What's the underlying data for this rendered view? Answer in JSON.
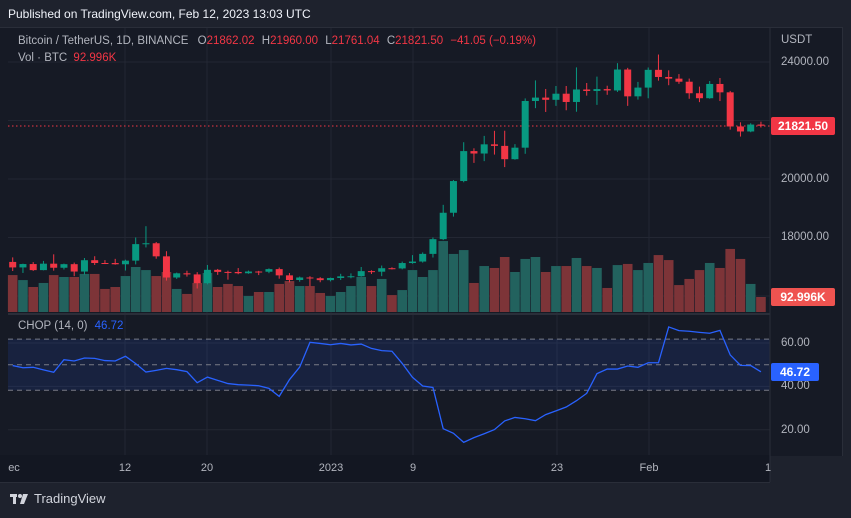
{
  "header": {
    "published": "Published on TradingView.com, Feb 12, 2023 13:03 UTC"
  },
  "legend": {
    "symbol": "Bitcoin / TetherUS, 1D, BINANCE",
    "o_label": "O",
    "o_value": "21862.02",
    "h_label": "H",
    "h_value": "21960.00",
    "l_label": "L",
    "l_value": "21761.04",
    "c_label": "C",
    "c_value": "21821.50",
    "change": "−41.05 (−0.19%)",
    "vol_label": "Vol · BTC",
    "vol_value": "92.996K",
    "chop_label": "CHOP (14, 0)",
    "chop_value": "46.72"
  },
  "footer": {
    "brand": "TradingView"
  },
  "colors": {
    "up": "#089981",
    "down": "#f23645",
    "vol_up": "#22625e",
    "vol_down": "#7d3438",
    "chop": "#2962ff"
  },
  "chart_data": [
    {
      "type": "candlestick",
      "title": "Bitcoin / TetherUS, 1D, BINANCE",
      "currency": "USDT",
      "ylim": [
        15500,
        24800
      ],
      "yticks": [
        "24000.00",
        "20000.00",
        "18000.00"
      ],
      "last_price_label": "21821.50",
      "xticks": [
        "ec",
        "12",
        "20",
        "2023",
        "9",
        "23",
        "Feb",
        "1"
      ],
      "dates": [
        "Dec 1",
        "Dec 2",
        "Dec 3",
        "Dec 4",
        "Dec 5",
        "Dec 6",
        "Dec 7",
        "Dec 8",
        "Dec 9",
        "Dec 10",
        "Dec 11",
        "Dec 12",
        "Dec 13",
        "Dec 14",
        "Dec 15",
        "Dec 16",
        "Dec 17",
        "Dec 18",
        "Dec 19",
        "Dec 20",
        "Dec 21",
        "Dec 22",
        "Dec 23",
        "Dec 24",
        "Dec 25",
        "Dec 26",
        "Dec 27",
        "Dec 28",
        "Dec 29",
        "Dec 30",
        "Dec 31",
        "Jan 1",
        "Jan 2",
        "Jan 3",
        "Jan 4",
        "Jan 5",
        "Jan 6",
        "Jan 7",
        "Jan 8",
        "Jan 9",
        "Jan 10",
        "Jan 11",
        "Jan 12",
        "Jan 13",
        "Jan 14",
        "Jan 15",
        "Jan 16",
        "Jan 17",
        "Jan 18",
        "Jan 19",
        "Jan 20",
        "Jan 21",
        "Jan 22",
        "Jan 23",
        "Jan 24",
        "Jan 25",
        "Jan 26",
        "Jan 27",
        "Jan 28",
        "Jan 29",
        "Jan 30",
        "Jan 31",
        "Feb 1",
        "Feb 2",
        "Feb 3",
        "Feb 4",
        "Feb 5",
        "Feb 6",
        "Feb 7",
        "Feb 8",
        "Feb 9",
        "Feb 10",
        "Feb 11",
        "Feb 12"
      ],
      "ohlc": [
        [
          17165,
          17320,
          16855,
          16977
        ],
        [
          16977,
          17105,
          16788,
          17092
        ],
        [
          17092,
          17158,
          16858,
          16885
        ],
        [
          16885,
          17199,
          16878,
          17105
        ],
        [
          17105,
          17425,
          16867,
          16966
        ],
        [
          16966,
          17107,
          16906,
          17088
        ],
        [
          17088,
          17142,
          16678,
          16836
        ],
        [
          16836,
          17299,
          16733,
          17224
        ],
        [
          17224,
          17360,
          17060,
          17128
        ],
        [
          17128,
          17227,
          17092,
          17127
        ],
        [
          17127,
          17270,
          17071,
          17085
        ],
        [
          17085,
          17241,
          16871,
          17209
        ],
        [
          17209,
          18000,
          17080,
          17774
        ],
        [
          17774,
          18387,
          17660,
          17803
        ],
        [
          17803,
          17846,
          17275,
          17356
        ],
        [
          17356,
          17531,
          16527,
          16632
        ],
        [
          16632,
          16800,
          16585,
          16776
        ],
        [
          16776,
          16864,
          16663,
          16738
        ],
        [
          16738,
          16815,
          16256,
          16438
        ],
        [
          16438,
          17061,
          16398,
          16895
        ],
        [
          16895,
          16925,
          16723,
          16824
        ],
        [
          16824,
          16868,
          16559,
          16821
        ],
        [
          16821,
          16955,
          16745,
          16778
        ],
        [
          16778,
          16869,
          16760,
          16837
        ],
        [
          16837,
          16860,
          16715,
          16830
        ],
        [
          16830,
          16944,
          16780,
          16919
        ],
        [
          16919,
          16972,
          16592,
          16706
        ],
        [
          16706,
          16785,
          16465,
          16547
        ],
        [
          16547,
          16664,
          16488,
          16633
        ],
        [
          16633,
          16677,
          16333,
          16607
        ],
        [
          16607,
          16644,
          16470,
          16542
        ],
        [
          16542,
          16628,
          16499,
          16616
        ],
        [
          16616,
          16759,
          16548,
          16672
        ],
        [
          16672,
          16773,
          16605,
          16675
        ],
        [
          16675,
          16991,
          16659,
          16850
        ],
        [
          16850,
          16879,
          16753,
          16831
        ],
        [
          16831,
          17041,
          16679,
          16950
        ],
        [
          16950,
          16981,
          16908,
          16943
        ],
        [
          16943,
          17176,
          16911,
          17127
        ],
        [
          17127,
          17398,
          17104,
          17178
        ],
        [
          17178,
          17490,
          17142,
          17440
        ],
        [
          17440,
          18000,
          17315,
          17943
        ],
        [
          17943,
          19117,
          17911,
          18846
        ],
        [
          18846,
          19964,
          18714,
          19930
        ],
        [
          19930,
          21258,
          19888,
          20954
        ],
        [
          20954,
          21050,
          20551,
          20871
        ],
        [
          20871,
          21474,
          20611,
          21185
        ],
        [
          21185,
          21647,
          20835,
          21132
        ],
        [
          21132,
          21650,
          20407,
          20677
        ],
        [
          20677,
          21192,
          20659,
          21071
        ],
        [
          21071,
          22755,
          20862,
          22667
        ],
        [
          22667,
          23371,
          22422,
          22783
        ],
        [
          22783,
          23078,
          22292,
          22707
        ],
        [
          22707,
          23180,
          22500,
          22916
        ],
        [
          22916,
          23180,
          22350,
          22633
        ],
        [
          22633,
          23816,
          22300,
          23060
        ],
        [
          23060,
          23282,
          22850,
          23009
        ],
        [
          23009,
          23500,
          22534,
          23074
        ],
        [
          23074,
          23189,
          22878,
          23027
        ],
        [
          23027,
          23960,
          22976,
          23743
        ],
        [
          23743,
          23800,
          22500,
          22826
        ],
        [
          22826,
          23320,
          22714,
          23125
        ],
        [
          23125,
          23812,
          22760,
          23732
        ],
        [
          23732,
          24255,
          23363,
          23488
        ],
        [
          23488,
          23715,
          23206,
          23431
        ],
        [
          23431,
          23587,
          23253,
          23326
        ],
        [
          23326,
          23433,
          22743,
          22932
        ],
        [
          22932,
          23158,
          22628,
          22762
        ],
        [
          22762,
          23350,
          22745,
          23249
        ],
        [
          23249,
          23452,
          22665,
          22963
        ],
        [
          22963,
          23011,
          21688,
          21796
        ],
        [
          21796,
          21938,
          21451,
          21625
        ],
        [
          21625,
          21906,
          21599,
          21862
        ],
        [
          21862,
          21960,
          21761,
          21821.5
        ]
      ],
      "volume_k": [
        229,
        198,
        155,
        180,
        229,
        217,
        217,
        236,
        236,
        143,
        155,
        223,
        279,
        260,
        223,
        248,
        143,
        112,
        180,
        242,
        155,
        174,
        161,
        99,
        124,
        124,
        174,
        192,
        161,
        161,
        118,
        99,
        124,
        161,
        217,
        161,
        205,
        105,
        136,
        260,
        217,
        260,
        440,
        360,
        384,
        180,
        285,
        273,
        341,
        248,
        329,
        341,
        248,
        285,
        285,
        335,
        285,
        273,
        149,
        291,
        298,
        260,
        304,
        353,
        322,
        167,
        205,
        260,
        304,
        273,
        391,
        329,
        174,
        93
      ],
      "volume_label": "92.996K",
      "chop": [
        49.6,
        48.6,
        48.8,
        47.6,
        46.5,
        52.3,
        51.7,
        53.1,
        52.9,
        51.9,
        51.7,
        53.9,
        50.5,
        46.6,
        47.4,
        48.3,
        47.7,
        46.8,
        41.7,
        44.3,
        42.8,
        41.3,
        40.8,
        40.6,
        40.3,
        39.1,
        35.4,
        43.1,
        48.9,
        60.3,
        59.8,
        59.2,
        59.8,
        59.1,
        59.5,
        57.5,
        56.5,
        56.2,
        50.6,
        44.2,
        40.2,
        39.5,
        20.5,
        18.4,
        14.2,
        16.4,
        18.2,
        20.1,
        24.1,
        25.7,
        25.1,
        24.2,
        27.0,
        28.7,
        30.5,
        33.4,
        36.8,
        45.9,
        48.0,
        48.0,
        49.4,
        48.8,
        50.9,
        50.9,
        67.4,
        65.7,
        65.4,
        64.9,
        64.5,
        65.8,
        54.5,
        49.7,
        49.6,
        46.72
      ],
      "chop_yticks": [
        "60.00",
        "40.00",
        "20.00"
      ],
      "chop_levels": [
        61.8,
        50,
        38.2
      ],
      "chop_last_label": "46.72"
    }
  ]
}
